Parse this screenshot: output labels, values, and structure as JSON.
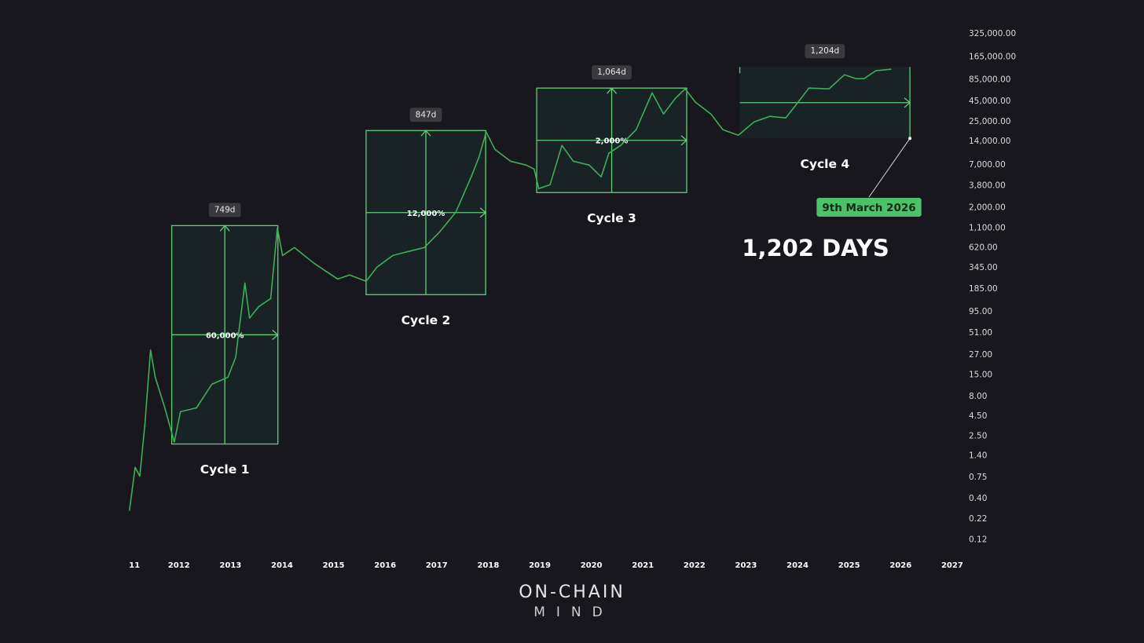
{
  "chart_data": {
    "type": "line",
    "log_scale": true,
    "color": "#3fae5a",
    "x": [
      2011.04,
      2011.15,
      2011.24,
      2011.34,
      2011.45,
      2011.54,
      2011.73,
      2011.91,
      2012.03,
      2012.34,
      2012.64,
      2012.95,
      2013.1,
      2013.28,
      2013.37,
      2013.55,
      2013.78,
      2013.91,
      2014.01,
      2014.24,
      2014.62,
      2015.08,
      2015.31,
      2015.63,
      2015.84,
      2016.15,
      2016.45,
      2016.76,
      2017.06,
      2017.37,
      2017.67,
      2017.82,
      2017.96,
      2018.13,
      2018.43,
      2018.74,
      2018.89,
      2018.98,
      2019.2,
      2019.43,
      2019.65,
      2019.96,
      2020.19,
      2020.34,
      2020.57,
      2020.87,
      2021.18,
      2021.4,
      2021.63,
      2021.82,
      2022.02,
      2022.32,
      2022.55,
      2022.85,
      2023.16,
      2023.46,
      2023.77,
      2024.07,
      2024.22,
      2024.61,
      2024.91,
      2025.14,
      2025.29,
      2025.52,
      2025.82
    ],
    "values": [
      0.28,
      1.0,
      0.77,
      3.5,
      31,
      14,
      5.6,
      2.1,
      5.1,
      5.7,
      11.4,
      14,
      25,
      221,
      79,
      111,
      140,
      1107,
      495,
      624,
      394,
      248,
      279,
      232,
      351,
      495,
      556,
      624,
      989,
      1754,
      4940,
      8790,
      18370,
      11070,
      7830,
      6980,
      6220,
      3500,
      3930,
      12420,
      7830,
      6980,
      4940,
      9860,
      12420,
      19690,
      57950,
      31120,
      49320,
      65030,
      43950,
      31120,
      19690,
      16750,
      24720,
      29040,
      27730,
      49320,
      66530,
      65030,
      98400,
      87700,
      87700,
      110400,
      115600
    ],
    "xlim": [
      2010.8,
      2027.2
    ],
    "xticks": [
      {
        "value": 2011,
        "label": "11"
      },
      2012,
      2013,
      2014,
      2015,
      2016,
      2017,
      2018,
      2019,
      2020,
      2021,
      2022,
      2023,
      2024,
      2025,
      2026,
      2027
    ],
    "ylim": [
      0.09,
      440000
    ],
    "yticks": [
      {
        "value": 325000,
        "label": "325,000.00"
      },
      {
        "value": 165000,
        "label": "165,000.00"
      },
      {
        "value": 85000,
        "label": "85,000.00"
      },
      {
        "value": 45000,
        "label": "45,000.00"
      },
      {
        "value": 25000,
        "label": "25,000.00"
      },
      {
        "value": 14000,
        "label": "14,000.00"
      },
      {
        "value": 7000,
        "label": "7,000.00"
      },
      {
        "value": 3800,
        "label": "3,800.00"
      },
      {
        "value": 2000,
        "label": "2,000.00"
      },
      {
        "value": 1100,
        "label": "1,100.00"
      },
      {
        "value": 620,
        "label": "620.00"
      },
      {
        "value": 345,
        "label": "345.00"
      },
      {
        "value": 185,
        "label": "185.00"
      },
      {
        "value": 95,
        "label": "95.00"
      },
      {
        "value": 51,
        "label": "51.00"
      },
      {
        "value": 27,
        "label": "27.00"
      },
      {
        "value": 15,
        "label": "15.00"
      },
      {
        "value": 8,
        "label": "8.00"
      },
      {
        "value": 4.5,
        "label": "4.50"
      },
      {
        "value": 2.5,
        "label": "2.50"
      },
      {
        "value": 1.4,
        "label": "1.40"
      },
      {
        "value": 0.75,
        "label": "0.75"
      },
      {
        "value": 0.4,
        "label": "0.40"
      },
      {
        "value": 0.22,
        "label": "0.22"
      },
      {
        "value": 0.12,
        "label": "0.12"
      }
    ],
    "cycles": [
      {
        "name": "Cycle 1",
        "days": "749d",
        "gain": "60,000%",
        "start": 2011.86,
        "end": 2013.92,
        "low": 1.98,
        "high": 1186
      },
      {
        "name": "Cycle 2",
        "days": "847d",
        "gain": "12,000%",
        "start": 2015.63,
        "end": 2017.95,
        "low": 157,
        "high": 19190
      },
      {
        "name": "Cycle 3",
        "days": "1,064d",
        "gain": "2,000%",
        "start": 2018.94,
        "end": 2021.85,
        "low": 3120,
        "high": 66500
      },
      {
        "name": "Cycle 4",
        "days": "1,204d",
        "start": 2022.88,
        "end": 2026.18,
        "low": 15240,
        "high": 123600
      }
    ],
    "callout": "9th March 2026",
    "headline": "1,202 DAYS",
    "brand": {
      "line1": "ON-CHAIN",
      "line2": "MIND"
    }
  }
}
